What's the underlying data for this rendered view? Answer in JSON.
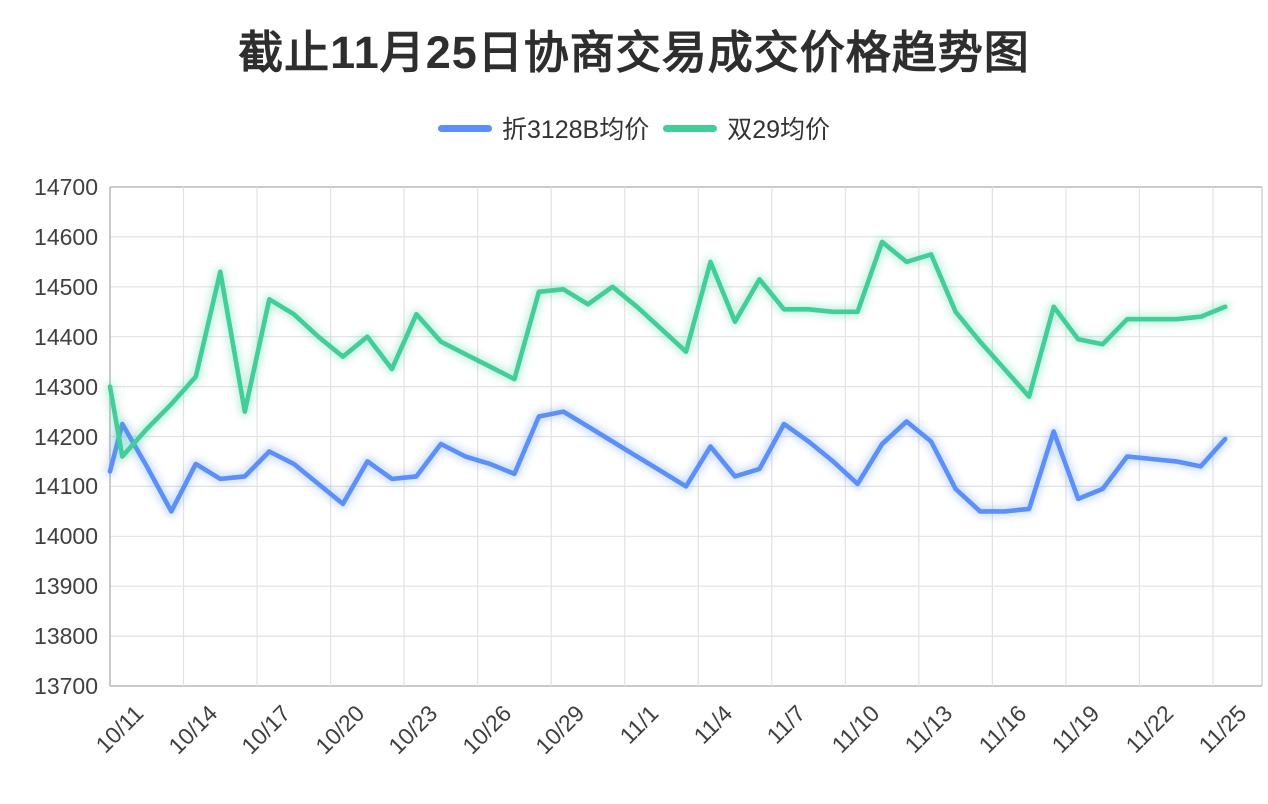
{
  "title": "截止11月25日协商交易成交价格趋势图",
  "legend": {
    "items": [
      {
        "label": "折3128B均价",
        "color": "#5B8FF9"
      },
      {
        "label": "双29均价",
        "color": "#41CE99"
      }
    ]
  },
  "chart_data": {
    "type": "line",
    "title": "截止11月25日协商交易成交价格趋势图",
    "grid": true,
    "legend_position": "top",
    "x_axis": {
      "labeled_ticks": [
        "10/11",
        "10/14",
        "10/17",
        "10/20",
        "10/23",
        "10/26",
        "10/29",
        "11/1",
        "11/4",
        "11/7",
        "11/10",
        "11/13",
        "11/16",
        "11/19",
        "11/22",
        "11/25"
      ],
      "label_interval": 3
    },
    "y_axis": {
      "min": 13700,
      "max": 14700,
      "tick_step": 100,
      "ticks": [
        14700,
        14600,
        14500,
        14400,
        14300,
        14200,
        14100,
        14000,
        13900,
        13800,
        13700
      ]
    },
    "categories": [
      "10/11",
      "10/12",
      "10/13",
      "10/14",
      "10/15",
      "10/16",
      "10/17",
      "10/18",
      "10/19",
      "10/20",
      "10/21",
      "10/22",
      "10/23",
      "10/24",
      "10/25",
      "10/26",
      "10/27",
      "10/28",
      "10/29",
      "10/30",
      "10/31",
      "11/1",
      "11/2",
      "11/3",
      "11/4",
      "11/5",
      "11/6",
      "11/7",
      "11/8",
      "11/9",
      "11/10",
      "11/11",
      "11/12",
      "11/13",
      "11/14",
      "11/15",
      "11/16",
      "11/17",
      "11/18",
      "11/19",
      "11/20",
      "11/21",
      "11/22",
      "11/23",
      "11/24",
      "11/25"
    ],
    "series": [
      {
        "name": "折3128B均价",
        "color": "#5B8FF9",
        "left_edge_value": 14130,
        "values": [
          14225,
          14140,
          14050,
          14145,
          14115,
          14120,
          14170,
          14145,
          14105,
          14065,
          14150,
          14115,
          14120,
          14185,
          14160,
          14145,
          14125,
          14240,
          14250,
          14220,
          14190,
          14160,
          14130,
          14100,
          14180,
          14120,
          14135,
          14225,
          14190,
          14150,
          14105,
          14185,
          14230,
          14190,
          14095,
          14050,
          14050,
          14055,
          14210,
          14075,
          14095,
          14160,
          14155,
          14150,
          14140,
          14195
        ]
      },
      {
        "name": "双29均价",
        "color": "#41CE99",
        "left_edge_value": 14300,
        "values": [
          14160,
          14215,
          14265,
          14320,
          14530,
          14250,
          14475,
          14445,
          14400,
          14360,
          14400,
          14335,
          14445,
          14390,
          14365,
          14340,
          14315,
          14490,
          14495,
          14465,
          14500,
          14460,
          14415,
          14370,
          14550,
          14430,
          14515,
          14455,
          14455,
          14450,
          14450,
          14590,
          14550,
          14565,
          14450,
          14390,
          14335,
          14280,
          14460,
          14395,
          14385,
          14435,
          14435,
          14435,
          14440,
          14460
        ]
      }
    ]
  }
}
